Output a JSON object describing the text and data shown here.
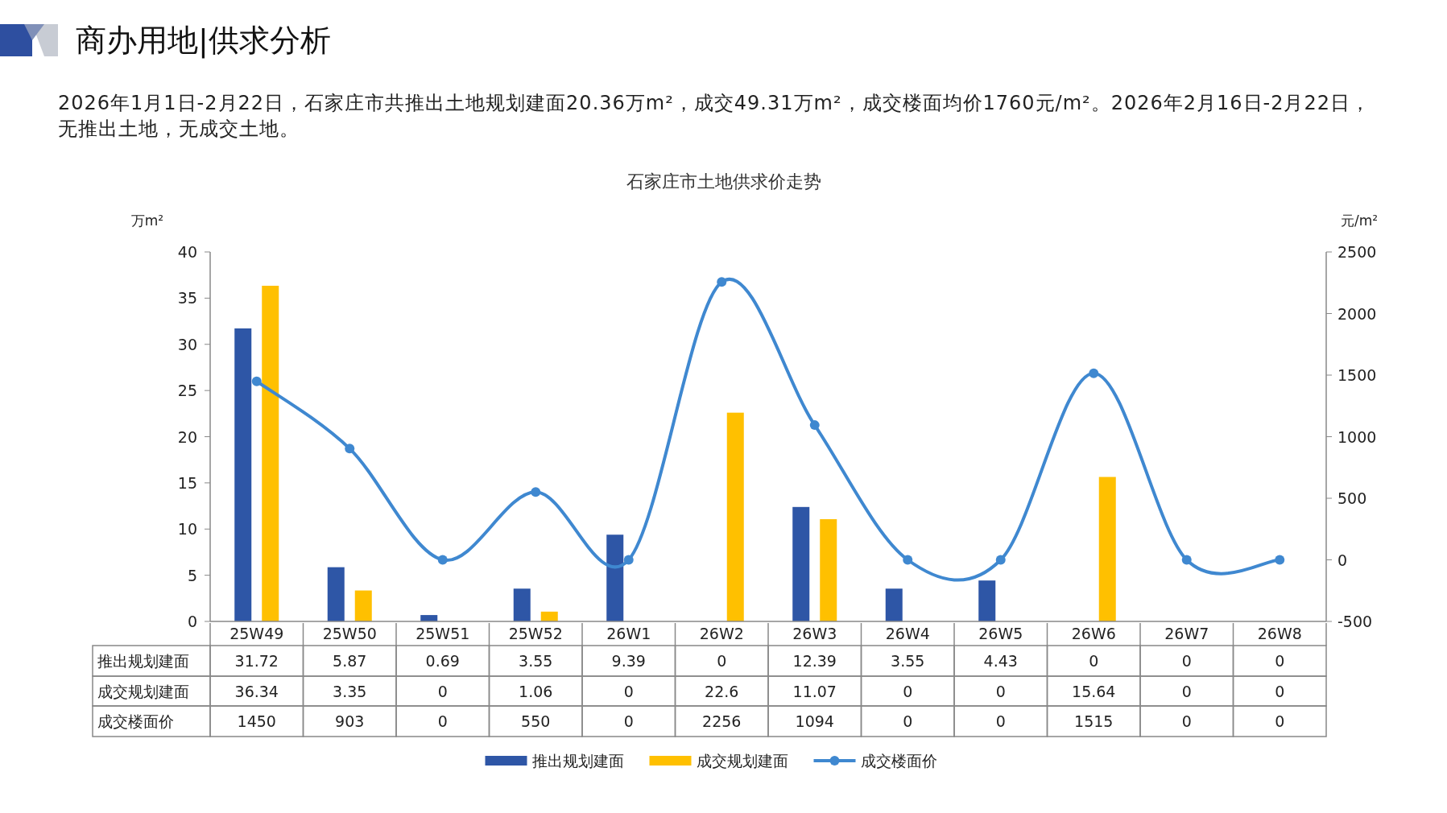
{
  "chart_data": {
    "type": "bar",
    "title": "石家庄市土地供求价走势",
    "annotations": [
      "商办用地|供求分析",
      "2026年1月1日-2月22日，石家庄市共推出土地规划建面20.36万m²，成交49.31万m²，成交楼面均价1760元/m²。2026年2月16日-2月22日，无推出土地，无成交土地。"
    ],
    "ylabel": "万m²",
    "y2label": "元/m²",
    "categories": [
      "25W49",
      "25W50",
      "25W51",
      "25W52",
      "26W1",
      "26W2",
      "26W3",
      "26W4",
      "26W5",
      "26W6",
      "26W7",
      "26W8"
    ],
    "series": [
      {
        "name": "推出规划建面",
        "color": "#2e56a6",
        "values": [
          31.72,
          5.87,
          0.69,
          3.55,
          9.39,
          0,
          12.39,
          3.55,
          4.43,
          0,
          0,
          0
        ]
      },
      {
        "name": "成交规划建面",
        "color": "#ffc000",
        "values": [
          36.34,
          3.35,
          0,
          1.06,
          0,
          22.6,
          11.07,
          0,
          0,
          15.64,
          0,
          0
        ]
      },
      {
        "name": "成交楼面价",
        "type": "line",
        "axis": "y2",
        "color": "#3f88d0",
        "marker": "circle",
        "values": [
          1450,
          903,
          0,
          550,
          0,
          2256,
          1094,
          0,
          0,
          1515,
          0,
          0
        ]
      }
    ],
    "ylim": [
      0,
      40
    ],
    "yticks": [
      0,
      5,
      10,
      15,
      20,
      25,
      30,
      35,
      40
    ],
    "y2lim": [
      -500,
      2500
    ],
    "y2ticks": [
      -500,
      0,
      500,
      1000,
      1500,
      2000,
      2500
    ],
    "data_labels": true,
    "legend": "bottom"
  }
}
